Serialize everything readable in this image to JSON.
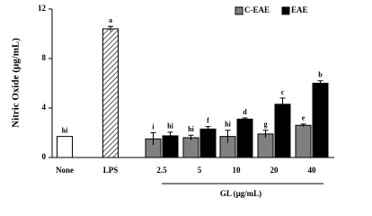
{
  "chart_data": {
    "type": "bar",
    "y_label": "Nitric Oxide (μg/mL)",
    "x_label": "GL (μg/mL)",
    "categories": [
      "None",
      "LPS",
      "2.5",
      "5",
      "10",
      "20",
      "40"
    ],
    "controls": {
      "values": [
        1.7,
        10.4,
        null,
        null,
        null,
        null,
        null
      ],
      "errors": [
        0,
        0.2,
        null,
        null,
        null,
        null,
        null
      ],
      "letters": [
        "hi",
        "a",
        null,
        null,
        null,
        null,
        null
      ],
      "styles": [
        "plain",
        "hatched",
        null,
        null,
        null,
        null,
        null
      ]
    },
    "series": [
      {
        "name": "C-EAE",
        "color": "#808080",
        "values": [
          null,
          null,
          1.5,
          1.6,
          1.7,
          1.9,
          2.6
        ],
        "errors": [
          null,
          null,
          0.5,
          0.2,
          0.5,
          0.3,
          0.1
        ],
        "letters": [
          null,
          null,
          "i",
          "hi",
          "hi",
          "g",
          "e"
        ]
      },
      {
        "name": "EAE",
        "color": "#000000",
        "values": [
          null,
          null,
          1.75,
          2.3,
          3.1,
          4.3,
          6.0
        ],
        "errors": [
          null,
          null,
          0.3,
          0.2,
          0.1,
          0.5,
          0.2
        ],
        "letters": [
          null,
          null,
          "hi",
          "f",
          "d",
          "c",
          "b"
        ]
      }
    ],
    "ylim": [
      0,
      12
    ],
    "yticks": [
      0,
      4,
      8,
      12
    ]
  }
}
